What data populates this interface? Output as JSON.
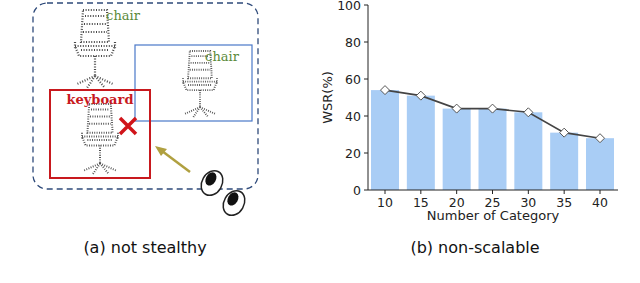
{
  "chart_data": {
    "type": "bar",
    "categories": [
      10,
      15,
      20,
      25,
      30,
      35,
      40
    ],
    "values": [
      54,
      51,
      44,
      44,
      42,
      31,
      28
    ],
    "color": "#a9cdf5",
    "marker": "diamond",
    "line_style": "solid",
    "x_label": "Number of Category",
    "y_label": "WSR(%)",
    "ylim": [
      0,
      100
    ],
    "yticks": [
      0,
      20,
      40,
      60,
      80,
      100
    ],
    "grid": false,
    "caption": "(b) non-scalable"
  },
  "diagram": {
    "labels": [
      "chair",
      "chair",
      "keyboard"
    ],
    "caption": "(a) not stealthy"
  }
}
